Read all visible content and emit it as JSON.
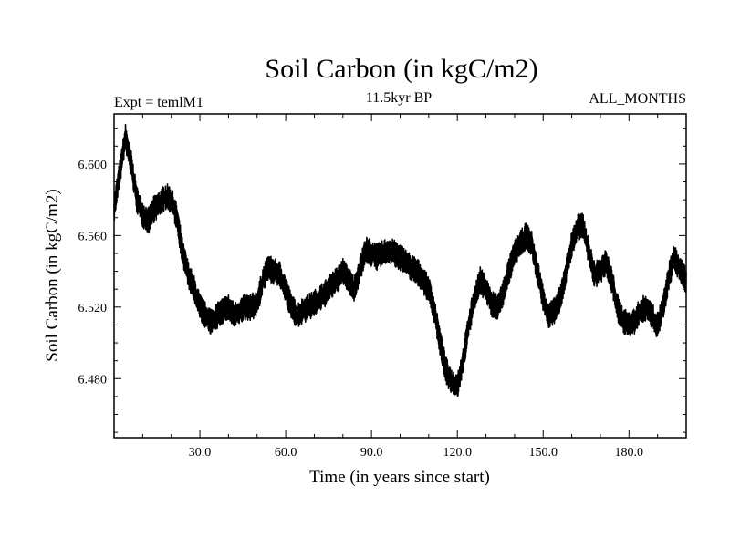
{
  "chart_data": {
    "type": "line",
    "title": "Soil Carbon (in kgC/m2)",
    "subtitle_left": "Expt = temlM1",
    "subtitle_center": "11.5kyr BP",
    "subtitle_right": "ALL_MONTHS",
    "xlabel": "Time (in years since start)",
    "ylabel": "Soil Carbon (in kgC/m2)",
    "xlim": [
      0,
      200
    ],
    "ylim": [
      6.447,
      6.628
    ],
    "x_ticks": [
      30,
      60,
      90,
      120,
      150,
      180
    ],
    "x_tick_labels": [
      "30.0",
      "60.0",
      "90.0",
      "120.0",
      "150.0",
      "180.0"
    ],
    "y_ticks": [
      6.48,
      6.52,
      6.56,
      6.6
    ],
    "y_tick_labels": [
      "6.480",
      "6.520",
      "6.560",
      "6.600"
    ],
    "line_color": "#000000",
    "series": [
      {
        "name": "Soil Carbon",
        "x": [
          0,
          2,
          4,
          6,
          8,
          10,
          12,
          14,
          16,
          18,
          20,
          22,
          24,
          26,
          28,
          30,
          32,
          34,
          36,
          38,
          40,
          42,
          44,
          46,
          48,
          50,
          52,
          54,
          56,
          58,
          60,
          62,
          64,
          66,
          68,
          70,
          72,
          74,
          76,
          78,
          80,
          82,
          84,
          86,
          88,
          90,
          92,
          94,
          96,
          98,
          100,
          102,
          104,
          106,
          108,
          110,
          112,
          114,
          116,
          118,
          120,
          122,
          124,
          126,
          128,
          130,
          132,
          134,
          136,
          138,
          140,
          142,
          144,
          146,
          148,
          150,
          152,
          154,
          156,
          158,
          160,
          162,
          164,
          166,
          168,
          170,
          172,
          174,
          176,
          178,
          180,
          182,
          184,
          186,
          188,
          190,
          192,
          194,
          196,
          198,
          200
        ],
        "y": [
          6.575,
          6.595,
          6.615,
          6.6,
          6.58,
          6.572,
          6.568,
          6.575,
          6.578,
          6.582,
          6.58,
          6.57,
          6.55,
          6.538,
          6.53,
          6.52,
          6.515,
          6.512,
          6.515,
          6.518,
          6.52,
          6.515,
          6.518,
          6.52,
          6.52,
          6.522,
          6.535,
          6.542,
          6.54,
          6.538,
          6.53,
          6.52,
          6.515,
          6.518,
          6.52,
          6.522,
          6.525,
          6.528,
          6.532,
          6.535,
          6.54,
          6.535,
          6.53,
          6.542,
          6.552,
          6.55,
          6.548,
          6.55,
          6.552,
          6.55,
          6.548,
          6.545,
          6.542,
          6.54,
          6.535,
          6.53,
          6.518,
          6.5,
          6.485,
          6.478,
          6.476,
          6.49,
          6.51,
          6.525,
          6.535,
          6.53,
          6.522,
          6.52,
          6.528,
          6.54,
          6.55,
          6.555,
          6.56,
          6.555,
          6.54,
          6.525,
          6.515,
          6.518,
          6.525,
          6.54,
          6.555,
          6.565,
          6.565,
          6.55,
          6.538,
          6.54,
          6.545,
          6.535,
          6.52,
          6.512,
          6.51,
          6.512,
          6.518,
          6.52,
          6.515,
          6.51,
          6.52,
          6.538,
          6.548,
          6.54,
          6.535
        ]
      }
    ]
  }
}
